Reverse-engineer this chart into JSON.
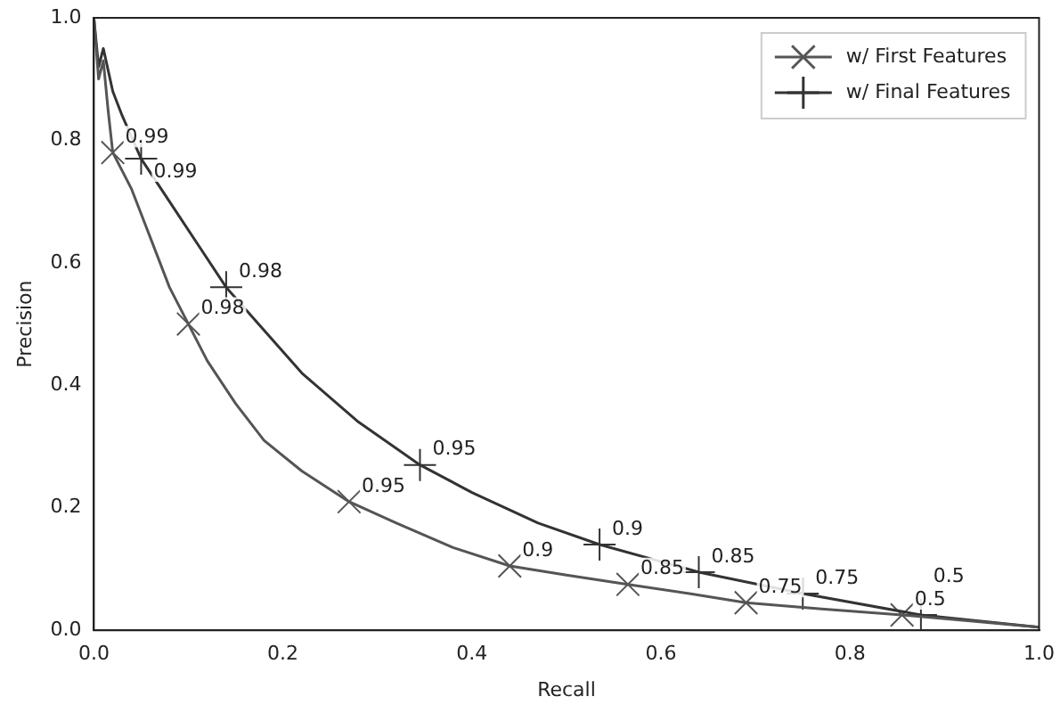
{
  "chart_data": {
    "type": "line",
    "xlabel": "Recall",
    "ylabel": "Precision",
    "xlim": [
      0,
      1
    ],
    "ylim": [
      0,
      1
    ],
    "xticks": [
      {
        "value": 0,
        "label": "0.0"
      },
      {
        "value": 0.2,
        "label": "0.2"
      },
      {
        "value": 0.4,
        "label": "0.4"
      },
      {
        "value": 0.6,
        "label": "0.6"
      },
      {
        "value": 0.8,
        "label": "0.8"
      },
      {
        "value": 1,
        "label": "1.0"
      }
    ],
    "yticks": [
      {
        "value": 0,
        "label": "0.0"
      },
      {
        "value": 0.2,
        "label": "0.2"
      },
      {
        "value": 0.4,
        "label": "0.4"
      },
      {
        "value": 0.6,
        "label": "0.6"
      },
      {
        "value": 0.8,
        "label": "0.8"
      },
      {
        "value": 1,
        "label": "1.0"
      }
    ],
    "grid": false,
    "legend": "top right",
    "line_style": "solid",
    "series": [
      {
        "name": "w/ First Features",
        "color": "#555555",
        "marker": "none",
        "x": [
          0,
          0.005,
          0.01,
          0.015,
          0.02,
          0.04,
          0.06,
          0.08,
          0.1,
          0.12,
          0.15,
          0.18,
          0.22,
          0.27,
          0.32,
          0.38,
          0.44,
          0.5,
          0.565,
          0.63,
          0.69,
          0.77,
          0.855,
          0.93,
          1.0
        ],
        "values": [
          1.0,
          0.9,
          0.93,
          0.85,
          0.78,
          0.72,
          0.64,
          0.56,
          0.5,
          0.44,
          0.37,
          0.31,
          0.26,
          0.21,
          0.175,
          0.135,
          0.105,
          0.09,
          0.075,
          0.06,
          0.045,
          0.035,
          0.025,
          0.015,
          0.005
        ]
      },
      {
        "name": "w/ Final Features",
        "color": "#333333",
        "marker": "none",
        "x": [
          0,
          0.005,
          0.01,
          0.02,
          0.03,
          0.05,
          0.08,
          0.11,
          0.14,
          0.18,
          0.22,
          0.28,
          0.345,
          0.4,
          0.47,
          0.535,
          0.64,
          0.75,
          0.875,
          1.0
        ],
        "values": [
          1.0,
          0.92,
          0.95,
          0.88,
          0.84,
          0.77,
          0.7,
          0.63,
          0.56,
          0.49,
          0.42,
          0.34,
          0.27,
          0.225,
          0.175,
          0.14,
          0.095,
          0.06,
          0.025,
          0.005
        ]
      },
      {
        "type": "scatter",
        "color": "#555555",
        "marker": "x",
        "x": [
          0.02,
          0.1,
          0.27,
          0.44,
          0.565,
          0.69,
          0.855
        ],
        "values": [
          0.78,
          0.5,
          0.21,
          0.105,
          0.075,
          0.045,
          0.025
        ]
      },
      {
        "type": "scatter",
        "color": "#333333",
        "marker": "cross",
        "x": [
          0.05,
          0.14,
          0.345,
          0.535,
          0.64,
          0.75,
          0.875
        ],
        "values": [
          0.77,
          0.56,
          0.27,
          0.14,
          0.095,
          0.06,
          0.025
        ]
      }
    ],
    "annotations": [
      {
        "text": "0.99",
        "x": 0.02,
        "y": 0.78
      },
      {
        "text": "0.99",
        "x": 0.05,
        "y": 0.77
      },
      {
        "text": "0.98",
        "x": 0.1,
        "y": 0.5
      },
      {
        "text": "0.98",
        "x": 0.14,
        "y": 0.56
      },
      {
        "text": "0.95",
        "x": 0.27,
        "y": 0.21
      },
      {
        "text": "0.95",
        "x": 0.345,
        "y": 0.27
      },
      {
        "text": "0.9",
        "x": 0.44,
        "y": 0.105
      },
      {
        "text": "0.9",
        "x": 0.535,
        "y": 0.14
      },
      {
        "text": "0.85",
        "x": 0.565,
        "y": 0.075
      },
      {
        "text": "0.85",
        "x": 0.64,
        "y": 0.095
      },
      {
        "text": "0.75",
        "x": 0.69,
        "y": 0.045
      },
      {
        "text": "0.75",
        "x": 0.75,
        "y": 0.06
      },
      {
        "text": "0.5",
        "x": 0.855,
        "y": 0.025
      },
      {
        "text": "0.5",
        "x": 0.875,
        "y": 0.025
      }
    ]
  }
}
